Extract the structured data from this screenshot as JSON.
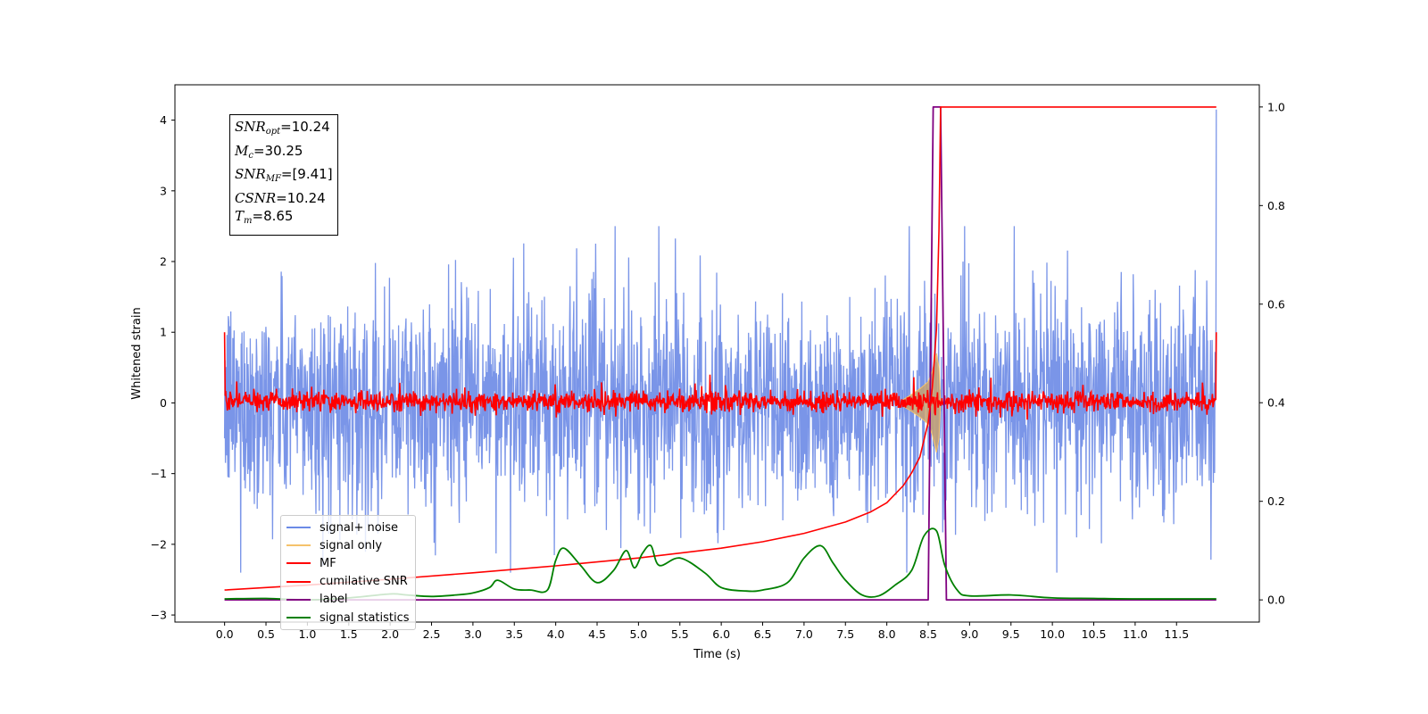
{
  "chart_data": {
    "type": "line",
    "xlabel": "Time (s)",
    "ylabel": "Whitened strain",
    "xlim": [
      -0.6,
      12.5
    ],
    "ylim": [
      -3.1,
      4.5
    ],
    "y2lim": [
      -0.045,
      1.045
    ],
    "x_ticks": [
      0.0,
      0.5,
      1.0,
      1.5,
      2.0,
      2.5,
      3.0,
      3.5,
      4.0,
      4.5,
      5.0,
      5.5,
      6.0,
      6.5,
      7.0,
      7.5,
      8.0,
      8.5,
      9.0,
      9.5,
      10.0,
      10.5,
      11.0,
      11.5
    ],
    "x_tick_labels": [
      "0.0",
      "0.5",
      "1.0",
      "1.5",
      "2.0",
      "2.5",
      "3.0",
      "3.5",
      "4.0",
      "4.5",
      "5.0",
      "5.5",
      "6.0",
      "6.5",
      "7.0",
      "7.5",
      "8.0",
      "8.5",
      "9.0",
      "9.5",
      "10.0",
      "10.5",
      "11.0",
      "11.5"
    ],
    "y_ticks": [
      -3,
      -2,
      -1,
      0,
      1,
      2,
      3,
      4
    ],
    "y_tick_labels": [
      "−3",
      "−2",
      "−1",
      "0",
      "1",
      "2",
      "3",
      "4"
    ],
    "y2_ticks": [
      0.0,
      0.2,
      0.4,
      0.6,
      0.8,
      1.0
    ],
    "y2_tick_labels": [
      "0.0",
      "0.2",
      "0.4",
      "0.6",
      "0.8",
      "1.0"
    ],
    "grid": false,
    "legend_position": "lower-left",
    "series": [
      {
        "name": "signal+ noise",
        "axis": "left",
        "color": "#6b8ae6",
        "description_values": {
          "x_start": 0.0,
          "x_end": 11.98,
          "typical_min": -1.6,
          "typical_max": 1.6,
          "max": 4.15,
          "min": -2.4
        }
      },
      {
        "name": "signal only",
        "axis": "left",
        "color": "#f5c26b",
        "x": [
          8.2,
          8.3,
          8.4,
          8.45,
          8.5,
          8.55,
          8.6,
          8.63,
          8.65
        ],
        "y": [
          0.05,
          0.12,
          0.2,
          0.25,
          0.3,
          0.45,
          0.7,
          0.5,
          0.0
        ]
      },
      {
        "name": "MF",
        "axis": "left",
        "color": "#ff0000",
        "description_values": {
          "x_start": 0.0,
          "x_end": 11.98,
          "start_value": 1.0,
          "end_value": 1.0,
          "typical_min": -0.15,
          "typical_max": 0.2
        }
      },
      {
        "name": "cumilative SNR",
        "axis": "right",
        "color": "#ff0000",
        "x": [
          0.0,
          1.0,
          2.0,
          3.0,
          4.0,
          5.0,
          6.0,
          6.5,
          7.0,
          7.5,
          7.8,
          8.0,
          8.2,
          8.3,
          8.4,
          8.5,
          8.55,
          8.6,
          8.63,
          8.65,
          11.98
        ],
        "y": [
          0.02,
          0.03,
          0.042,
          0.055,
          0.069,
          0.085,
          0.105,
          0.118,
          0.135,
          0.158,
          0.178,
          0.197,
          0.232,
          0.258,
          0.29,
          0.36,
          0.43,
          0.55,
          0.75,
          1.0,
          1.0
        ]
      },
      {
        "name": "label",
        "axis": "right",
        "color": "#800080",
        "x": [
          0.0,
          8.5,
          8.56,
          8.65,
          8.72,
          11.98
        ],
        "y": [
          0.0,
          0.0,
          1.0,
          1.0,
          0.0,
          0.0
        ]
      },
      {
        "name": "signal statistics",
        "axis": "right",
        "color": "#008000",
        "x": [
          0.0,
          0.5,
          1.0,
          1.5,
          2.0,
          2.2,
          2.5,
          2.8,
          3.0,
          3.2,
          3.3,
          3.5,
          3.7,
          3.9,
          4.0,
          4.1,
          4.3,
          4.5,
          4.7,
          4.85,
          4.95,
          5.05,
          5.15,
          5.25,
          5.5,
          5.8,
          6.0,
          6.3,
          6.5,
          6.8,
          7.0,
          7.2,
          7.35,
          7.5,
          7.7,
          7.9,
          8.1,
          8.3,
          8.45,
          8.6,
          8.7,
          8.85,
          9.0,
          9.5,
          10.0,
          10.5,
          11.0,
          11.5,
          11.98
        ],
        "y": [
          0.002,
          0.003,
          0.0,
          0.004,
          0.012,
          0.01,
          0.007,
          0.01,
          0.014,
          0.025,
          0.04,
          0.022,
          0.02,
          0.02,
          0.08,
          0.105,
          0.07,
          0.035,
          0.06,
          0.1,
          0.065,
          0.095,
          0.11,
          0.07,
          0.085,
          0.055,
          0.025,
          0.018,
          0.02,
          0.035,
          0.085,
          0.11,
          0.075,
          0.04,
          0.01,
          0.008,
          0.03,
          0.06,
          0.13,
          0.14,
          0.07,
          0.02,
          0.008,
          0.01,
          0.004,
          0.003,
          0.002,
          0.002,
          0.002
        ]
      }
    ],
    "annotations": {
      "snr_opt": "10.24",
      "mc": "30.25",
      "snr_mf": "[9.41]",
      "csnr": "10.24",
      "tm": "8.65"
    }
  },
  "legend": {
    "entries": [
      {
        "label": "signal+ noise",
        "color": "#6b8ae6"
      },
      {
        "label": "signal only",
        "color": "#f5c26b"
      },
      {
        "label": "MF",
        "color": "#ff0000"
      },
      {
        "label": "cumilative SNR",
        "color": "#ff0000"
      },
      {
        "label": "label",
        "color": "#800080"
      },
      {
        "label": "signal statistics",
        "color": "#008000"
      }
    ]
  },
  "info_box": {
    "snr_opt_name": "SNR",
    "snr_opt_sub": "opt",
    "snr_opt_value": "=10.24",
    "mc_name": "M",
    "mc_sub": "c",
    "mc_value": "=30.25",
    "snr_mf_name": "SNR",
    "snr_mf_sub": "MF",
    "snr_mf_value": "=[9.41]",
    "csnr_name": "CSNR",
    "csnr_value": "=10.24",
    "tm_name": "T",
    "tm_sub": "m",
    "tm_value": "=8.65"
  }
}
